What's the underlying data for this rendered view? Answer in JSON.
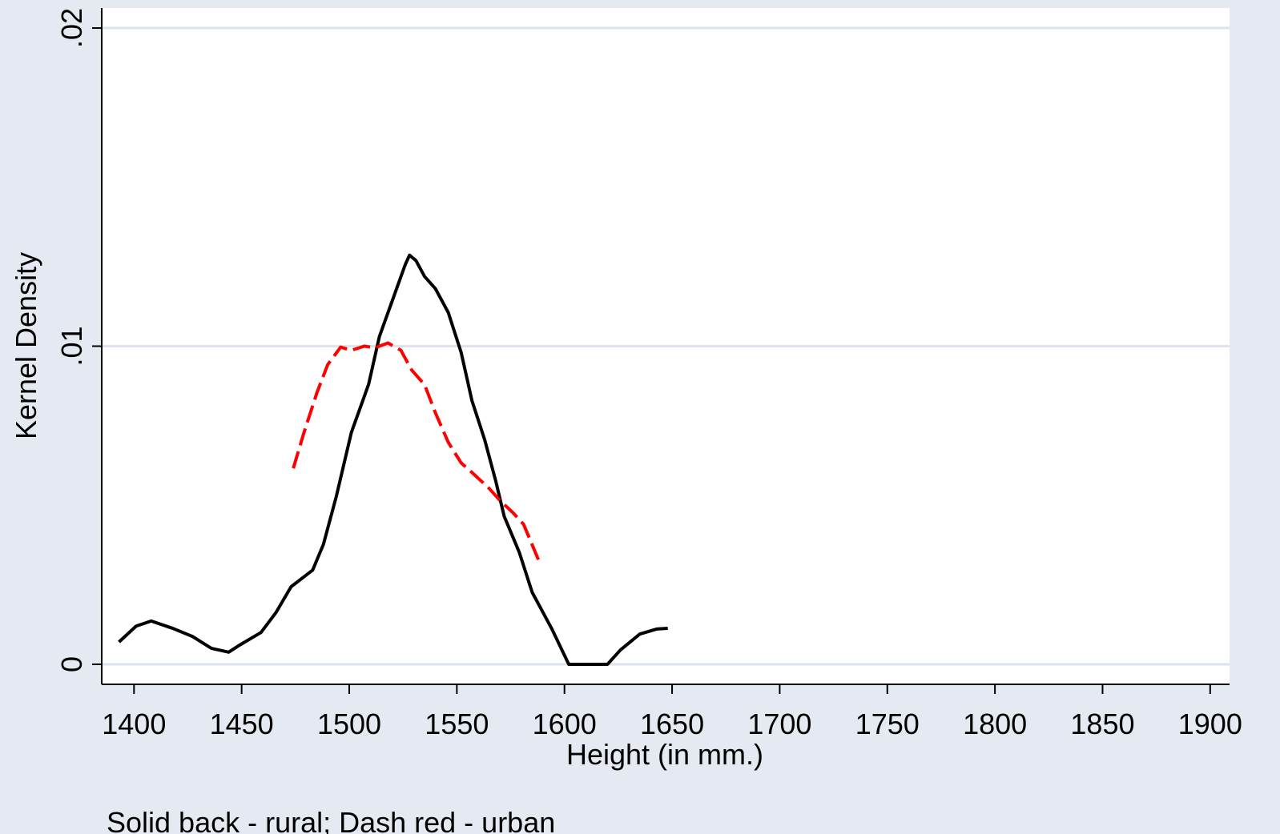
{
  "chart_data": {
    "type": "line",
    "x_label": "Height (in mm.)",
    "y_label": "Kernel Density",
    "note": "Solid back - rural; Dash red - urban",
    "xlim": [
      1385,
      1909
    ],
    "ylim": [
      -0.00063,
      0.02063
    ],
    "xticks": [
      1400,
      1450,
      1500,
      1550,
      1600,
      1650,
      1700,
      1750,
      1800,
      1850,
      1900
    ],
    "yticks": [
      0,
      {
        "value": 0.01,
        "label": ".01"
      },
      {
        "value": 0.02,
        "label": ".02"
      }
    ],
    "grid": true,
    "series": [
      {
        "color": "#000000",
        "dash": false,
        "x": [
          1393,
          1401,
          1408,
          1418,
          1427,
          1436,
          1444,
          1449,
          1459,
          1466,
          1473,
          1483,
          1488,
          1494,
          1501,
          1509,
          1514,
          1520,
          1526,
          1528,
          1531,
          1535,
          1540,
          1546,
          1552,
          1557,
          1563,
          1568,
          1572,
          1579,
          1585,
          1594,
          1602,
          1620,
          1626,
          1635,
          1643,
          1648
        ],
        "values": [
          0.0007,
          0.0012,
          0.00136,
          0.00113,
          0.00088,
          0.0005,
          0.00038,
          0.0006,
          0.001,
          0.00163,
          0.00244,
          0.00296,
          0.00377,
          0.00528,
          0.00729,
          0.0088,
          0.0103,
          0.01143,
          0.01256,
          0.01286,
          0.01269,
          0.01219,
          0.01181,
          0.01106,
          0.0098,
          0.00829,
          0.00704,
          0.00578,
          0.00465,
          0.00352,
          0.00226,
          0.00113,
          0,
          0,
          0.00045,
          0.00095,
          0.00111,
          0.00113
        ]
      },
      {
        "color": "#ff0000",
        "dash": true,
        "x": [
          1474,
          1479,
          1485,
          1490,
          1496,
          1501,
          1507,
          1512,
          1518,
          1524,
          1529,
          1535,
          1540,
          1546,
          1552,
          1557,
          1565,
          1570,
          1576,
          1581,
          1588
        ],
        "values": [
          0.00616,
          0.00729,
          0.00854,
          0.00942,
          0.00997,
          0.00987,
          0.01,
          0.00995,
          0.0101,
          0.00987,
          0.00925,
          0.00879,
          0.00791,
          0.00698,
          0.00633,
          0.00603,
          0.00553,
          0.00515,
          0.00477,
          0.0044,
          0.00327
        ]
      }
    ]
  }
}
